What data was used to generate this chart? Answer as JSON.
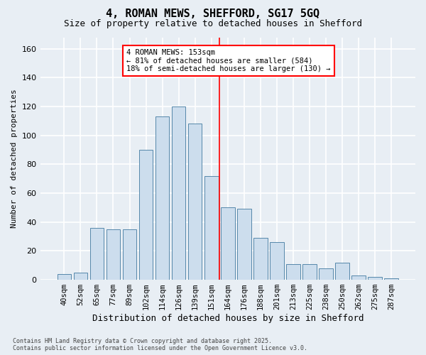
{
  "title": "4, ROMAN MEWS, SHEFFORD, SG17 5GQ",
  "subtitle": "Size of property relative to detached houses in Shefford",
  "xlabel": "Distribution of detached houses by size in Shefford",
  "ylabel": "Number of detached properties",
  "footer_line1": "Contains HM Land Registry data © Crown copyright and database right 2025.",
  "footer_line2": "Contains public sector information licensed under the Open Government Licence v3.0.",
  "bar_labels": [
    "40sqm",
    "52sqm",
    "65sqm",
    "77sqm",
    "89sqm",
    "102sqm",
    "114sqm",
    "126sqm",
    "139sqm",
    "151sqm",
    "164sqm",
    "176sqm",
    "188sqm",
    "201sqm",
    "213sqm",
    "225sqm",
    "238sqm",
    "250sqm",
    "262sqm",
    "275sqm",
    "287sqm"
  ],
  "bar_values": [
    4,
    5,
    36,
    35,
    35,
    90,
    113,
    120,
    108,
    72,
    50,
    49,
    29,
    26,
    11,
    11,
    8,
    12,
    3,
    2,
    1
  ],
  "bar_color": "#ccdded",
  "bar_edge_color": "#5588aa",
  "vline_color": "red",
  "vline_x": 9.48,
  "annotation_title": "4 ROMAN MEWS: 153sqm",
  "annotation_line2": "← 81% of detached houses are smaller (584)",
  "annotation_line3": "18% of semi-detached houses are larger (130) →",
  "annotation_box_facecolor": "white",
  "annotation_box_edgecolor": "red",
  "ylim": [
    0,
    168
  ],
  "yticks": [
    0,
    20,
    40,
    60,
    80,
    100,
    120,
    140,
    160
  ],
  "background_color": "#e8eef4",
  "plot_background": "#e8eef4",
  "title_fontsize": 11,
  "subtitle_fontsize": 9,
  "ylabel_fontsize": 8,
  "xlabel_fontsize": 9,
  "tick_fontsize": 7.5,
  "grid_color": "white",
  "grid_linewidth": 1.2,
  "annot_fontsize": 7.5
}
